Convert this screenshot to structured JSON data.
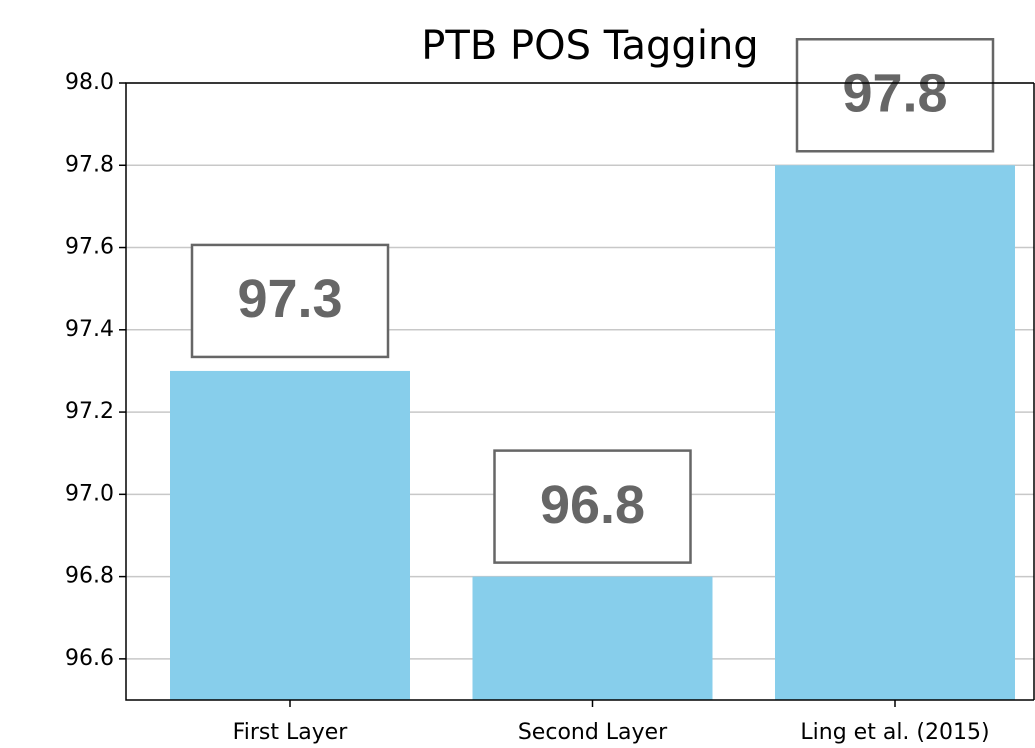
{
  "chart_data": {
    "type": "bar",
    "title": "PTB POS Tagging",
    "categories": [
      "First Layer",
      "Second Layer",
      "Ling et al. (2015)"
    ],
    "values": [
      97.3,
      96.8,
      97.8
    ],
    "color": "#87ceeb",
    "ylim": [
      96.5,
      98.0
    ],
    "yticks": [
      96.6,
      96.8,
      {
        "value": 97.0,
        "label": "97.0"
      },
      97.2,
      97.4,
      97.6,
      97.8,
      {
        "value": 98.0,
        "label": "98.0"
      }
    ],
    "grid": true
  }
}
